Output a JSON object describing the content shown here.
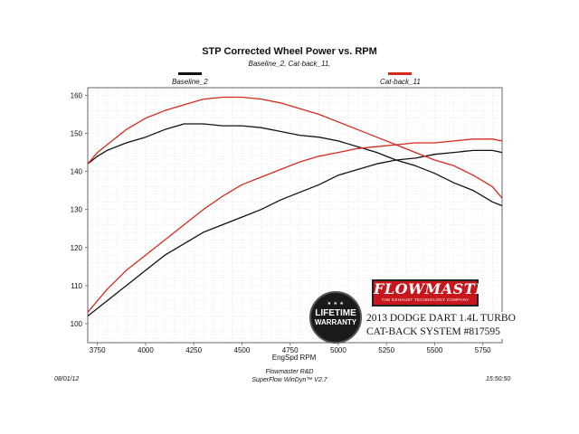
{
  "chart_data": {
    "type": "line",
    "title": "STP Corrected Wheel Power vs. RPM",
    "subtitle": "Baseline_2, Cat-back_11,",
    "xlabel": "EngSpd RPM",
    "ylabel": "",
    "xlim": [
      3700,
      5850
    ],
    "ylim": [
      95,
      162
    ],
    "x_ticks": [
      "3750",
      "4000",
      "4250",
      "4500",
      "4750",
      "5000",
      "5250",
      "5500",
      "5750"
    ],
    "x_tick_values": [
      3750,
      4000,
      4250,
      4500,
      4750,
      5000,
      5250,
      5500,
      5750
    ],
    "y_ticks": [
      "100",
      "110",
      "120",
      "130",
      "140",
      "150",
      "160"
    ],
    "y_tick_values": [
      100,
      110,
      120,
      130,
      140,
      150,
      160
    ],
    "grid": true,
    "legend_position": "top",
    "series": [
      {
        "name": "Baseline_2",
        "color": "#111111",
        "upper": {
          "x": [
            3700,
            3750,
            3800,
            3900,
            4000,
            4100,
            4200,
            4300,
            4400,
            4500,
            4600,
            4700,
            4800,
            4900,
            5000,
            5100,
            5200,
            5300,
            5400,
            5500,
            5600,
            5700,
            5800,
            5850
          ],
          "y": [
            142,
            144,
            145.5,
            147.5,
            149,
            151,
            152.5,
            152.5,
            152,
            152,
            151.5,
            150.5,
            149.5,
            149,
            148,
            146.5,
            145,
            143,
            141.5,
            139.5,
            137,
            135,
            132,
            131
          ]
        },
        "lower": {
          "x": [
            3700,
            3750,
            3800,
            3900,
            4000,
            4100,
            4200,
            4300,
            4400,
            4500,
            4600,
            4700,
            4800,
            4900,
            5000,
            5100,
            5200,
            5300,
            5400,
            5500,
            5600,
            5700,
            5800,
            5850
          ],
          "y": [
            102,
            104,
            106,
            110,
            114,
            118,
            121,
            124,
            126,
            128,
            130,
            132.5,
            134.5,
            136.5,
            139,
            140.5,
            142,
            143,
            143.5,
            144.5,
            145,
            145.5,
            145.5,
            145
          ]
        }
      },
      {
        "name": "Cat-back_11",
        "color": "#d42a1e",
        "upper": {
          "x": [
            3700,
            3750,
            3800,
            3900,
            4000,
            4100,
            4200,
            4300,
            4400,
            4500,
            4600,
            4700,
            4800,
            4900,
            5000,
            5100,
            5200,
            5300,
            5400,
            5500,
            5600,
            5700,
            5800,
            5850
          ],
          "y": [
            142,
            145,
            147,
            151,
            154,
            156,
            157.5,
            159,
            159.5,
            159.5,
            159,
            158,
            156.5,
            155,
            153,
            151,
            149,
            147,
            145,
            143,
            141.5,
            139,
            136,
            133
          ]
        },
        "lower": {
          "x": [
            3700,
            3750,
            3800,
            3900,
            4000,
            4100,
            4200,
            4300,
            4400,
            4500,
            4600,
            4700,
            4800,
            4900,
            5000,
            5100,
            5200,
            5300,
            5400,
            5500,
            5600,
            5700,
            5800,
            5850
          ],
          "y": [
            103,
            106,
            109,
            114,
            118,
            122,
            126,
            130,
            133.5,
            136.5,
            138.5,
            140.5,
            142.5,
            144,
            145,
            146,
            146.5,
            147,
            147.5,
            147.5,
            148,
            148.5,
            148.5,
            148
          ]
        }
      }
    ]
  },
  "footer": {
    "date": "08/01/12",
    "org": "Flowmaster R&D",
    "software": "SuperFlow WinDyn™ V2.7",
    "time": "15:50:50"
  },
  "branding": {
    "badge_top": "LIFETIME WARRANTY",
    "badge_line1": "LIFETIME",
    "badge_line2": "WARRANTY",
    "logo": "FLOWMASTER",
    "logo_tagline": "THE EXHAUST TECHNOLOGY COMPANY",
    "product_line1": "2013 DODGE DART 1.4L TURBO",
    "product_line2": "CAT-BACK SYSTEM #817595"
  },
  "colors": {
    "plot_bg": "#ffffff",
    "grid": "#cccccc"
  }
}
